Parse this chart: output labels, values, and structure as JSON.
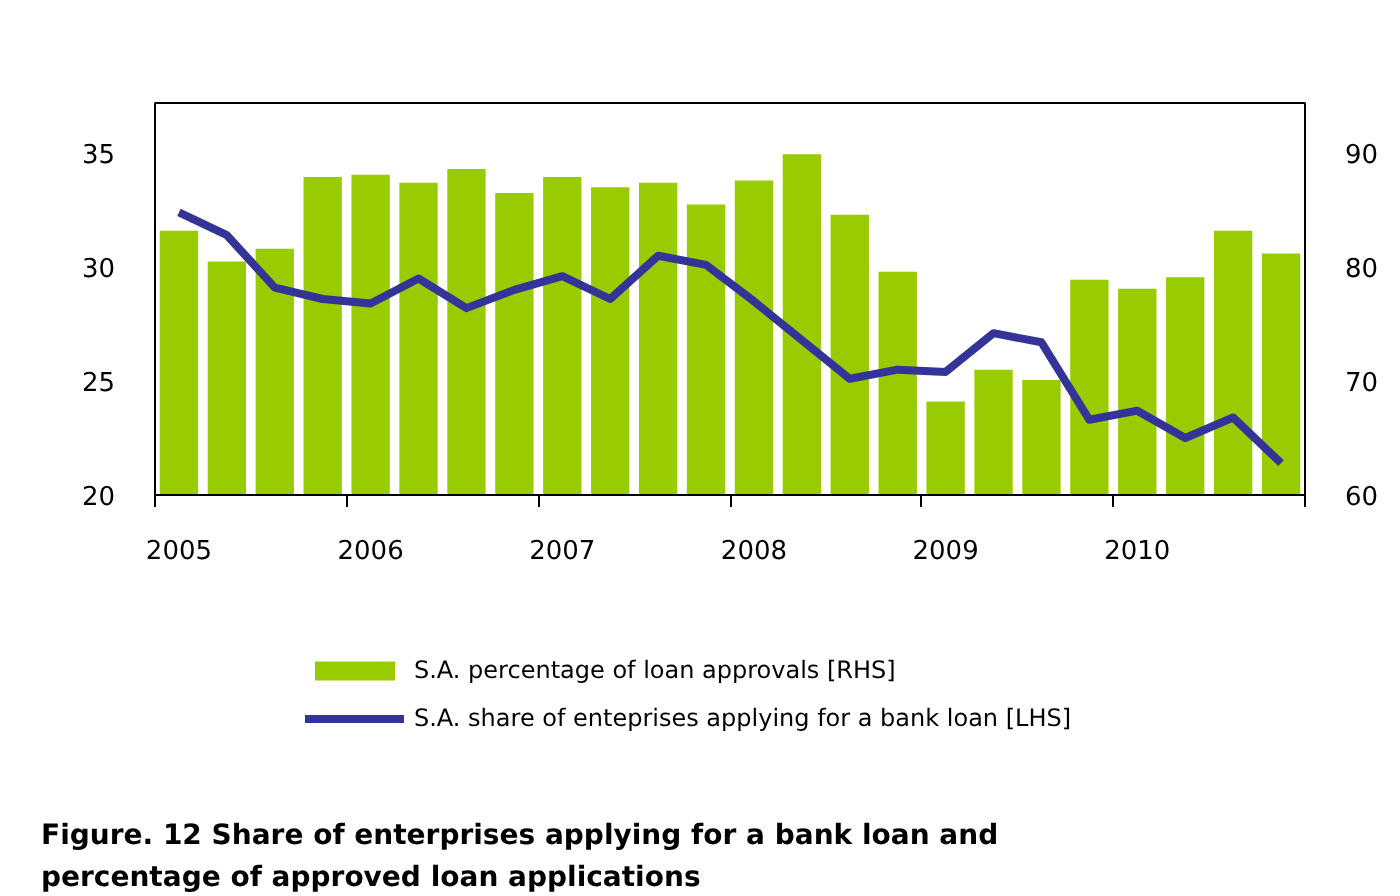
{
  "chart_data": {
    "type": "bar",
    "title": "Figure. 12 Share of enterprises applying for a bank loan and percentage of approved loan applications",
    "categories": [
      "2005",
      null,
      null,
      null,
      "2006",
      null,
      null,
      null,
      "2007",
      null,
      null,
      null,
      "2008",
      null,
      null,
      null,
      "2009",
      null,
      null,
      null,
      "2010",
      null,
      null,
      null
    ],
    "series": [
      {
        "name": "S.A. percentage of loan approvals [RHS]",
        "type": "bar",
        "axis": "y2",
        "color": "#99cc00",
        "values": [
          83.2,
          80.5,
          81.6,
          87.9,
          88.1,
          87.4,
          88.6,
          86.5,
          87.9,
          87.0,
          87.4,
          85.5,
          87.6,
          89.9,
          84.6,
          79.6,
          68.2,
          71.0,
          70.1,
          78.9,
          78.1,
          79.1,
          83.2,
          81.2
        ]
      },
      {
        "name": "S.A. share of enteprises applying for a bank loan [LHS]",
        "type": "line",
        "color": "#333399",
        "values": [
          32.4,
          31.4,
          29.1,
          28.6,
          28.4,
          29.5,
          28.2,
          29.0,
          29.6,
          28.6,
          30.5,
          30.1,
          28.5,
          26.8,
          25.1,
          25.5,
          25.4,
          27.1,
          26.7,
          23.3,
          23.7,
          22.5,
          23.4,
          21.4
        ]
      }
    ],
    "ylim": [
      20,
      37.2
    ],
    "yticks": [
      20,
      25,
      30,
      35
    ],
    "y2lim": [
      60,
      94.4
    ],
    "y2ticks": [
      60,
      70,
      80,
      90
    ],
    "grid": false,
    "legend": "bottom"
  }
}
